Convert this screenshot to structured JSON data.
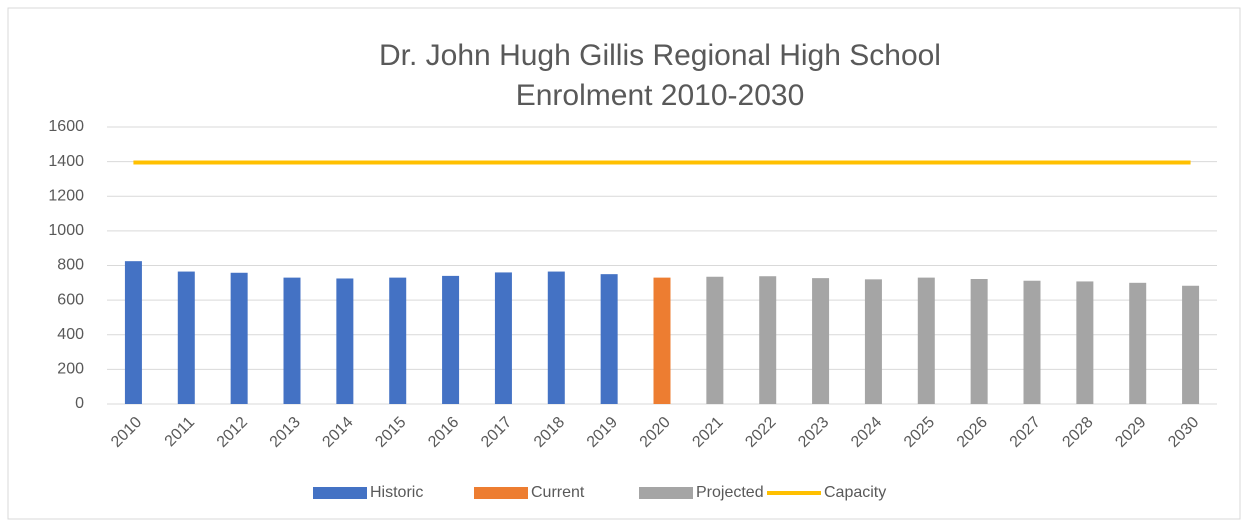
{
  "chart_data": {
    "type": "bar",
    "title": [
      "Dr. John Hugh Gillis Regional High School",
      "Enrolment 2010-2030"
    ],
    "categories": [
      "2010",
      "2011",
      "2012",
      "2013",
      "2014",
      "2015",
      "2016",
      "2017",
      "2018",
      "2019",
      "2020",
      "2021",
      "2022",
      "2023",
      "2024",
      "2025",
      "2026",
      "2027",
      "2028",
      "2029",
      "2030"
    ],
    "series": [
      {
        "name": "Historic",
        "color": "#4472c4",
        "values": [
          825,
          765,
          758,
          730,
          725,
          730,
          740,
          760,
          765,
          750,
          null,
          null,
          null,
          null,
          null,
          null,
          null,
          null,
          null,
          null,
          null
        ]
      },
      {
        "name": "Current",
        "color": "#ed7d31",
        "values": [
          null,
          null,
          null,
          null,
          null,
          null,
          null,
          null,
          null,
          null,
          730,
          null,
          null,
          null,
          null,
          null,
          null,
          null,
          null,
          null,
          null
        ]
      },
      {
        "name": "Projected",
        "color": "#a5a5a5",
        "values": [
          null,
          null,
          null,
          null,
          null,
          null,
          null,
          null,
          null,
          null,
          null,
          735,
          738,
          727,
          720,
          730,
          722,
          712,
          708,
          700,
          683
        ]
      },
      {
        "name": "Capacity",
        "color": "#ffc000",
        "type": "line",
        "values": [
          1395,
          1395,
          1395,
          1395,
          1395,
          1395,
          1395,
          1395,
          1395,
          1395,
          1395,
          1395,
          1395,
          1395,
          1395,
          1395,
          1395,
          1395,
          1395,
          1395,
          1395
        ]
      }
    ],
    "ylim": [
      0,
      1600
    ],
    "yticks": [
      0,
      200,
      400,
      600,
      800,
      1000,
      1200,
      1400,
      1600
    ],
    "grid": true,
    "legend": "bottom"
  }
}
